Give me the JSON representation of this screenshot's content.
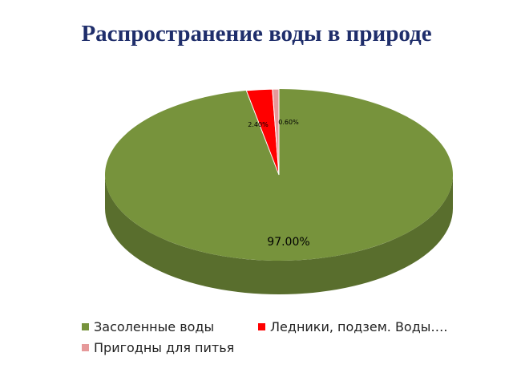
{
  "chart_data": {
    "type": "pie",
    "title": "Распространение воды в природе",
    "categories": [
      "Засоленные воды",
      "Ледники, подзем. Воды….",
      "Пригодны для питья"
    ],
    "values": [
      97.0,
      2.4,
      0.6
    ],
    "data_labels": [
      "97.00%",
      "2.40%",
      "0.60%"
    ],
    "colors": [
      "#77933c",
      "#ff0000",
      "#e6999a"
    ],
    "legend_position": "bottom",
    "style": "3d"
  }
}
